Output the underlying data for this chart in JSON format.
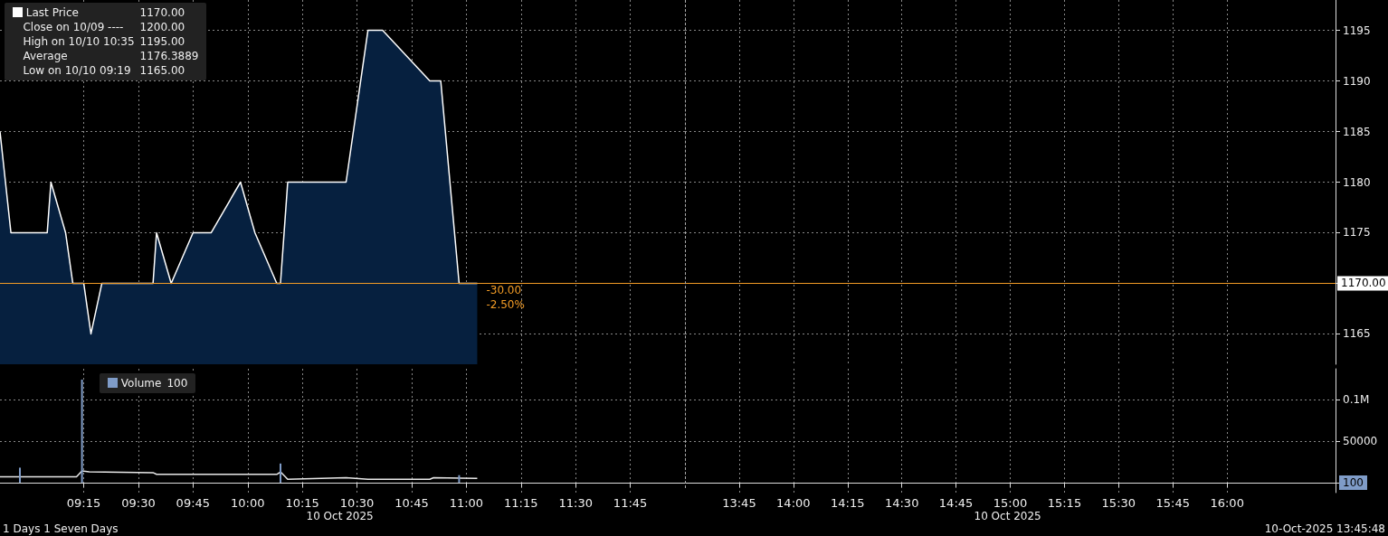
{
  "chart_data": [
    {
      "type": "area",
      "tick_labels": false,
      "grid": true,
      "legend": "top left",
      "x": [
        8.867,
        8.917,
        9.083,
        9.1,
        9.167,
        9.2,
        9.25,
        9.283,
        9.333,
        9.567,
        9.583,
        9.65,
        9.75,
        9.833,
        9.967,
        10.033,
        10.133,
        10.15,
        10.183,
        10.45,
        10.55,
        10.617,
        10.833,
        10.883,
        10.967,
        11.05
      ],
      "series": [
        {
          "name": "Last Price",
          "color": "#06203f",
          "values": [
            1185,
            1175,
            1175,
            1180,
            1175,
            1170,
            1170,
            1165,
            1170,
            1170,
            1175,
            1170,
            1175,
            1175,
            1180,
            1175,
            1170,
            1170,
            1180,
            1180,
            1195,
            1195,
            1190,
            1190,
            1170,
            1170
          ]
        }
      ],
      "xlim": [
        8.867,
        12
      ],
      "xticks": [
        9.25,
        9.5,
        9.75,
        10,
        10.25,
        10.5,
        10.75,
        11,
        11.25,
        11.5,
        11.75
      ],
      "ylim": [
        1162,
        1198
      ],
      "yticks": [
        1165,
        1170,
        1175,
        1180,
        1185,
        1190,
        1195
      ],
      "ref_lines": [
        {
          "axis": "y",
          "value": 1170,
          "color": "#f39c26"
        }
      ],
      "annotations": [
        "1170.00",
        "Close on 10/09 ----",
        "1200.00",
        "High on 10/10 10:35",
        "1195.00",
        "Average",
        "1176.3889",
        "Low on 10/10 09:19",
        "1165.00",
        "-30.00",
        "-2.50%"
      ]
    },
    {
      "type": "area",
      "tick_labels": "y",
      "grid": true,
      "xlim": [
        13.5,
        16.5
      ],
      "xticks": [
        13.75,
        14,
        14.25,
        14.5,
        14.75,
        15,
        15.25,
        15.5,
        15.75,
        16
      ],
      "ylim": [
        1162,
        1198
      ],
      "yticks": [
        1165,
        {
          "value": 1170,
          "label": null
        },
        1175,
        1180,
        1185,
        1190,
        1195
      ],
      "ref_lines": [
        {
          "axis": "y",
          "value": 1170,
          "label": "1170.00",
          "color": "#f39c26"
        }
      ]
    },
    {
      "type": "bar",
      "tick_labels": "x",
      "grid": true,
      "legend": "top left",
      "xlim": [
        8.867,
        12
      ],
      "xticks": [
        {
          "value": 9.25,
          "label": "09:15"
        },
        {
          "value": 9.5,
          "label": "09:30"
        },
        {
          "value": 9.75,
          "label": "09:45"
        },
        {
          "value": 10,
          "label": "10:00"
        },
        {
          "value": 10.25,
          "label": "10:15"
        },
        {
          "value": 10.5,
          "label": "10:30"
        },
        {
          "value": 10.75,
          "label": "10:45"
        },
        {
          "value": 11,
          "label": "11:00"
        },
        {
          "value": 11.25,
          "label": "11:15"
        },
        {
          "value": 11.5,
          "label": "11:30"
        },
        {
          "value": 11.75,
          "label": "11:45"
        }
      ],
      "ylim": [
        -12000,
        137000
      ],
      "yticks": [
        0,
        50000,
        100000
      ],
      "series": [
        {
          "name": "Volume",
          "color": "#7f9cc8",
          "x": [
            8.958,
            9.242,
            10.15,
            10.967
          ],
          "values": [
            18000,
            124000,
            23000,
            9000
          ]
        },
        {
          "type": "line",
          "color": "#e8e8e8",
          "x": [
            8.867,
            9.217,
            9.242,
            9.275,
            9.567,
            9.583,
            10.133,
            10.15,
            10.183,
            10.45,
            10.55,
            10.833,
            10.85,
            11.05
          ],
          "values": [
            7000,
            7000,
            14000,
            13000,
            12000,
            10000,
            10000,
            13000,
            4000,
            6000,
            4000,
            4000,
            6000,
            5000
          ]
        }
      ],
      "annotations": [
        "100",
        "10 Oct 2025",
        "1 Days 1 Seven Days"
      ]
    },
    {
      "type": "bar",
      "grid": true,
      "xlim": [
        13.5,
        16.5
      ],
      "xticks": [
        {
          "value": 13.75,
          "label": "13:45"
        },
        {
          "value": 14,
          "label": "14:00"
        },
        {
          "value": 14.25,
          "label": "14:15"
        },
        {
          "value": 14.5,
          "label": "14:30"
        },
        {
          "value": 14.75,
          "label": "14:45"
        },
        {
          "value": 15,
          "label": "15:00"
        },
        {
          "value": 15.25,
          "label": "15:15"
        },
        {
          "value": 15.5,
          "label": "15:30"
        },
        {
          "value": 15.75,
          "label": "15:45"
        },
        {
          "value": 16,
          "label": "16:00"
        }
      ],
      "ylim": [
        -12000,
        137000
      ],
      "yticks": [
        {
          "value": 0,
          "label": null
        },
        50000,
        {
          "value": 100000,
          "label": "0.1M"
        }
      ],
      "annotations": [
        "100",
        "10 Oct 2025",
        "10-Oct-2025 13:45:48"
      ]
    }
  ]
}
